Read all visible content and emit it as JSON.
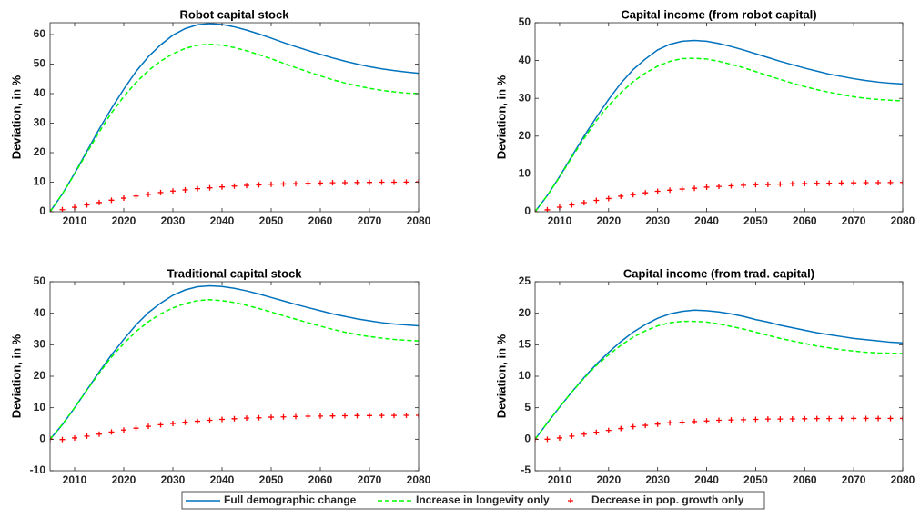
{
  "chart_data": [
    {
      "type": "line",
      "title": "Robot capital stock",
      "ylabel": "Deviation, in %",
      "x": [
        2005,
        2007.5,
        2010,
        2012.5,
        2015,
        2017.5,
        2020,
        2022.5,
        2025,
        2027.5,
        2030,
        2032.5,
        2035,
        2037.5,
        2040,
        2042.5,
        2045,
        2047.5,
        2050,
        2052.5,
        2055,
        2057.5,
        2060,
        2062.5,
        2065,
        2067.5,
        2070,
        2072.5,
        2075,
        2077.5,
        2080
      ],
      "xlim": [
        2005,
        2080
      ],
      "xticks": [
        2010,
        2020,
        2030,
        2040,
        2050,
        2060,
        2070,
        2080
      ],
      "ylim": [
        0,
        64
      ],
      "yticks": [
        0,
        10,
        20,
        30,
        40,
        50,
        60
      ],
      "series": [
        {
          "name": "Full demographic change",
          "color": "#0072bd",
          "dash": false,
          "marker": null,
          "values": [
            0,
            6,
            13,
            20.5,
            28,
            35,
            41.5,
            47.5,
            52.5,
            56.5,
            59.8,
            62,
            63.3,
            63.7,
            63.4,
            62.6,
            61.5,
            60.2,
            58.8,
            57.3,
            55.9,
            54.6,
            53.3,
            52.1,
            51,
            50,
            49.1,
            48.4,
            47.8,
            47.3,
            46.9
          ]
        },
        {
          "name": "Increase in longevity only",
          "color": "#00ff00",
          "dash": true,
          "marker": null,
          "values": [
            0,
            6,
            12.8,
            20,
            27,
            33.5,
            39,
            43.8,
            47.8,
            51,
            53.5,
            55.3,
            56.4,
            56.7,
            56.4,
            55.6,
            54.5,
            53.2,
            51.8,
            50.3,
            48.8,
            47.4,
            46,
            44.7,
            43.6,
            42.6,
            41.8,
            41.1,
            40.6,
            40.2,
            40
          ]
        },
        {
          "name": "Decrease in pop. growth only",
          "color": "#ff0000",
          "dash": false,
          "marker": "+",
          "values": [
            0,
            0.7,
            1.5,
            2.3,
            3.1,
            3.9,
            4.6,
            5.3,
            5.9,
            6.5,
            7,
            7.4,
            7.8,
            8.1,
            8.4,
            8.7,
            8.9,
            9.1,
            9.3,
            9.4,
            9.5,
            9.6,
            9.7,
            9.8,
            9.85,
            9.9,
            9.95,
            10,
            10,
            10.05,
            10.1
          ]
        }
      ]
    },
    {
      "type": "line",
      "title": "Capital income (from robot capital)",
      "ylabel": "Deviation, in %",
      "x": [
        2005,
        2007.5,
        2010,
        2012.5,
        2015,
        2017.5,
        2020,
        2022.5,
        2025,
        2027.5,
        2030,
        2032.5,
        2035,
        2037.5,
        2040,
        2042.5,
        2045,
        2047.5,
        2050,
        2052.5,
        2055,
        2057.5,
        2060,
        2062.5,
        2065,
        2067.5,
        2070,
        2072.5,
        2075,
        2077.5,
        2080
      ],
      "xlim": [
        2005,
        2080
      ],
      "xticks": [
        2010,
        2020,
        2030,
        2040,
        2050,
        2060,
        2070,
        2080
      ],
      "ylim": [
        0,
        50
      ],
      "yticks": [
        0,
        10,
        20,
        30,
        40,
        50
      ],
      "series": [
        {
          "name": "Full demographic change",
          "color": "#0072bd",
          "dash": false,
          "marker": null,
          "values": [
            0,
            4.3,
            9.3,
            14.7,
            20,
            25,
            29.7,
            34,
            37.6,
            40.4,
            42.8,
            44.3,
            45.1,
            45.3,
            45.1,
            44.5,
            43.7,
            42.8,
            41.8,
            40.8,
            39.8,
            38.9,
            38,
            37.2,
            36.4,
            35.8,
            35.2,
            34.7,
            34.3,
            34,
            33.8
          ]
        },
        {
          "name": "Increase in longevity only",
          "color": "#00ff00",
          "dash": true,
          "marker": null,
          "values": [
            0,
            4.3,
            9.2,
            14.4,
            19.4,
            24.1,
            28.1,
            31.5,
            34.4,
            36.7,
            38.5,
            39.8,
            40.5,
            40.6,
            40.4,
            39.8,
            39,
            38.1,
            37.1,
            36,
            35,
            34,
            33.1,
            32.3,
            31.6,
            31,
            30.4,
            30,
            29.7,
            29.5,
            29.3
          ]
        },
        {
          "name": "Decrease in pop. growth only",
          "color": "#ff0000",
          "dash": false,
          "marker": "+",
          "values": [
            0,
            0.5,
            1.2,
            1.8,
            2.4,
            3,
            3.5,
            4.1,
            4.5,
            5,
            5.4,
            5.7,
            6,
            6.2,
            6.5,
            6.7,
            6.85,
            7,
            7.15,
            7.2,
            7.3,
            7.4,
            7.45,
            7.5,
            7.55,
            7.6,
            7.65,
            7.7,
            7.7,
            7.72,
            7.75
          ]
        }
      ]
    },
    {
      "type": "line",
      "title": "Traditional capital stock",
      "ylabel": "Deviation, in %",
      "x": [
        2005,
        2007.5,
        2010,
        2012.5,
        2015,
        2017.5,
        2020,
        2022.5,
        2025,
        2027.5,
        2030,
        2032.5,
        2035,
        2037.5,
        2040,
        2042.5,
        2045,
        2047.5,
        2050,
        2052.5,
        2055,
        2057.5,
        2060,
        2062.5,
        2065,
        2067.5,
        2070,
        2072.5,
        2075,
        2077.5,
        2080
      ],
      "xlim": [
        2005,
        2080
      ],
      "xticks": [
        2010,
        2020,
        2030,
        2040,
        2050,
        2060,
        2070,
        2080
      ],
      "ylim": [
        -10,
        50
      ],
      "yticks": [
        -10,
        0,
        10,
        20,
        30,
        40,
        50
      ],
      "series": [
        {
          "name": "Full demographic change",
          "color": "#0072bd",
          "dash": false,
          "marker": null,
          "values": [
            0,
            4.6,
            10,
            15.7,
            21.4,
            26.8,
            31.7,
            36.3,
            40.2,
            43.2,
            45.7,
            47.4,
            48.4,
            48.7,
            48.5,
            47.9,
            47.1,
            46.1,
            45,
            43.9,
            42.8,
            41.8,
            40.8,
            39.8,
            39,
            38.2,
            37.6,
            37,
            36.6,
            36.3,
            36
          ]
        },
        {
          "name": "Increase in longevity only",
          "color": "#00ff00",
          "dash": true,
          "marker": null,
          "values": [
            0,
            4.7,
            10,
            15.6,
            21,
            26.1,
            30.4,
            34.2,
            37.3,
            39.8,
            41.7,
            43.1,
            44,
            44.3,
            44,
            43.4,
            42.5,
            41.5,
            40.4,
            39.2,
            38.1,
            37,
            35.9,
            34.9,
            34,
            33.2,
            32.6,
            32.1,
            31.7,
            31.4,
            31.2
          ]
        },
        {
          "name": "Decrease in pop. growth only",
          "color": "#ff0000",
          "dash": false,
          "marker": "+",
          "values": [
            0,
            -0.1,
            0.4,
            1,
            1.6,
            2.3,
            2.9,
            3.5,
            4.1,
            4.6,
            5,
            5.4,
            5.7,
            6,
            6.3,
            6.5,
            6.7,
            6.8,
            7,
            7.1,
            7.2,
            7.3,
            7.35,
            7.4,
            7.45,
            7.5,
            7.5,
            7.55,
            7.55,
            7.6,
            7.6
          ]
        }
      ]
    },
    {
      "type": "line",
      "title": "Capital income (from trad. capital)",
      "ylabel": "Deviation, in %",
      "x": [
        2005,
        2007.5,
        2010,
        2012.5,
        2015,
        2017.5,
        2020,
        2022.5,
        2025,
        2027.5,
        2030,
        2032.5,
        2035,
        2037.5,
        2040,
        2042.5,
        2045,
        2047.5,
        2050,
        2052.5,
        2055,
        2057.5,
        2060,
        2062.5,
        2065,
        2067.5,
        2070,
        2072.5,
        2075,
        2077.5,
        2080
      ],
      "xlim": [
        2005,
        2080
      ],
      "xticks": [
        2010,
        2020,
        2030,
        2040,
        2050,
        2060,
        2070,
        2080
      ],
      "ylim": [
        -5,
        25
      ],
      "yticks": [
        -5,
        0,
        5,
        10,
        15,
        20,
        25
      ],
      "series": [
        {
          "name": "Full demographic change",
          "color": "#0072bd",
          "dash": false,
          "marker": null,
          "values": [
            0,
            2.6,
            5.1,
            7.5,
            9.8,
            11.9,
            13.8,
            15.5,
            17,
            18.2,
            19.2,
            19.9,
            20.3,
            20.5,
            20.4,
            20.2,
            19.9,
            19.5,
            19,
            18.6,
            18.1,
            17.7,
            17.3,
            16.9,
            16.6,
            16.3,
            16,
            15.8,
            15.6,
            15.4,
            15.3
          ]
        },
        {
          "name": "Increase in longevity only",
          "color": "#00ff00",
          "dash": true,
          "marker": null,
          "values": [
            0,
            2.6,
            5.1,
            7.5,
            9.7,
            11.7,
            13.4,
            14.9,
            16.2,
            17.2,
            18,
            18.5,
            18.7,
            18.7,
            18.6,
            18.3,
            17.9,
            17.5,
            17,
            16.5,
            16,
            15.6,
            15.2,
            14.8,
            14.5,
            14.2,
            14,
            13.8,
            13.7,
            13.65,
            13.6
          ]
        },
        {
          "name": "Decrease in pop. growth only",
          "color": "#ff0000",
          "dash": false,
          "marker": "+",
          "values": [
            0,
            0,
            0.2,
            0.5,
            0.8,
            1.1,
            1.4,
            1.7,
            2,
            2.2,
            2.4,
            2.6,
            2.7,
            2.8,
            2.9,
            3,
            3.05,
            3.1,
            3.15,
            3.2,
            3.2,
            3.22,
            3.25,
            3.27,
            3.28,
            3.3,
            3.3,
            3.3,
            3.3,
            3.3,
            3.3
          ]
        }
      ]
    }
  ]
}
